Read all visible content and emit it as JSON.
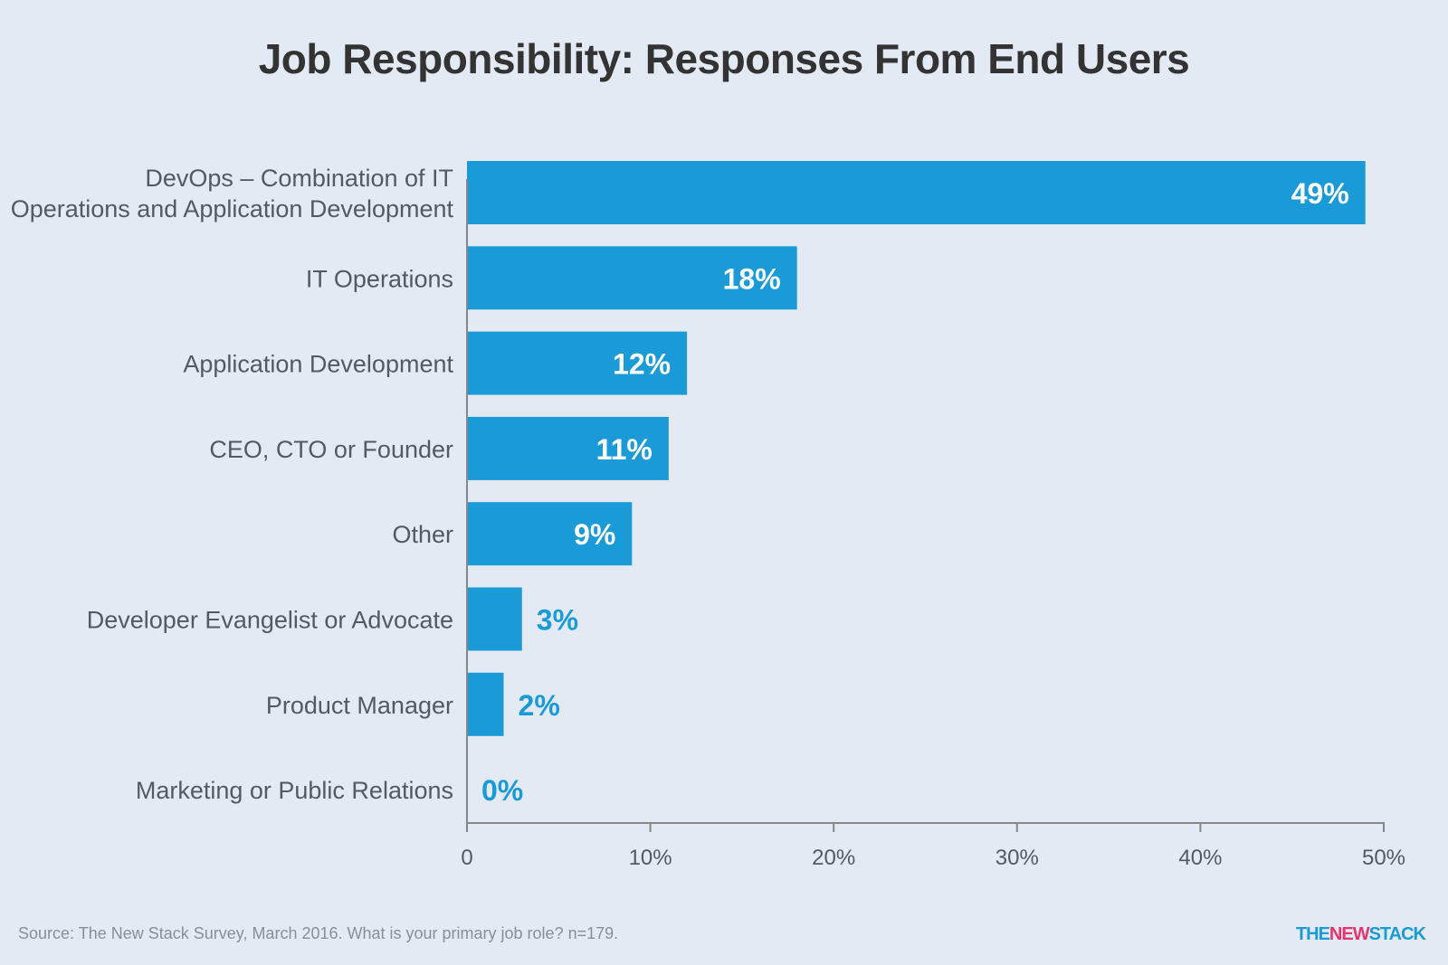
{
  "chart_data": {
    "type": "bar",
    "orientation": "horizontal",
    "title": "Job Responsibility: Responses From End Users",
    "categories": [
      [
        "DevOps – Combination of IT",
        "Operations and Application Development"
      ],
      [
        "IT Operations"
      ],
      [
        "Application Development"
      ],
      [
        "CEO, CTO or Founder"
      ],
      [
        "Other"
      ],
      [
        "Developer Evangelist or Advocate"
      ],
      [
        "Product Manager"
      ],
      [
        "Marketing or Public Relations"
      ]
    ],
    "values": [
      49,
      18,
      12,
      11,
      9,
      3,
      2,
      0
    ],
    "value_labels": [
      "49%",
      "18%",
      "12%",
      "11%",
      "9%",
      "3%",
      "2%",
      "0%"
    ],
    "xlim": [
      0,
      50
    ],
    "x_ticks": [
      0,
      10,
      20,
      30,
      40,
      50
    ],
    "x_tick_labels": [
      "0",
      "10%",
      "20%",
      "30%",
      "40%",
      "50%"
    ],
    "grid": false,
    "colors": {
      "bar": "#1a9bd7",
      "label_inside": "#ffffff",
      "label_outside": "#1a9bd7",
      "category_text": "#555a61",
      "axis": "#888888",
      "background": "#e3eaf3"
    }
  },
  "footer": {
    "source": "Source: The New Stack Survey, March 2016. What is your primary job role? n=179.",
    "logo_parts": [
      "THE",
      "NEW",
      "STACK"
    ]
  }
}
